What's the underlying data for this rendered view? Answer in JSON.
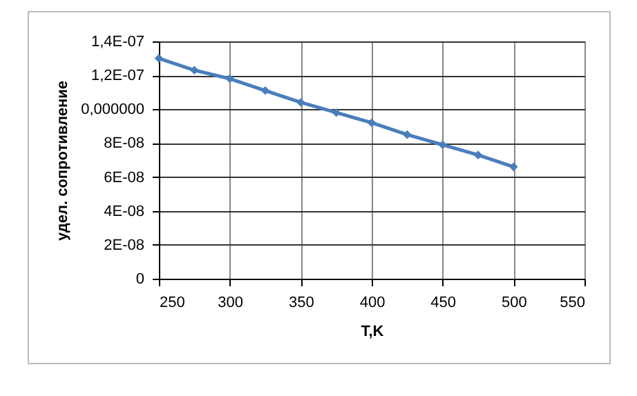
{
  "chart_data": {
    "type": "line",
    "xlabel": "T,K",
    "ylabel": "удел. сопротивление",
    "x": [
      250,
      275,
      300,
      325,
      350,
      375,
      400,
      425,
      450,
      475,
      500
    ],
    "series": [
      {
        "color": "#4a7ebb",
        "values": [
          1.3e-07,
          1.23e-07,
          1.18e-07,
          1.11e-07,
          1.04e-07,
          9.8e-08,
          9.2e-08,
          8.5e-08,
          7.9e-08,
          7.3e-08,
          6.6e-08
        ]
      }
    ],
    "xlim": [
      250,
      550
    ],
    "xticks": [
      250,
      300,
      350,
      400,
      450,
      500,
      550
    ],
    "ylim": [
      0,
      1.4e-07
    ],
    "yticks": [
      {
        "value": 0,
        "label": "0"
      },
      {
        "value": 2e-08,
        "label": "2E-08"
      },
      {
        "value": 4e-08,
        "label": "4E-08"
      },
      {
        "value": 6e-08,
        "label": "6E-08"
      },
      {
        "value": 8e-08,
        "label": "8E-08"
      },
      {
        "value": 1e-07,
        "label": "0,000000"
      },
      {
        "value": 1.2e-07,
        "label": "1,2E-07"
      },
      {
        "value": 1.4e-07,
        "label": "1,4E-07"
      }
    ],
    "grid": true,
    "marker": "diamond"
  }
}
